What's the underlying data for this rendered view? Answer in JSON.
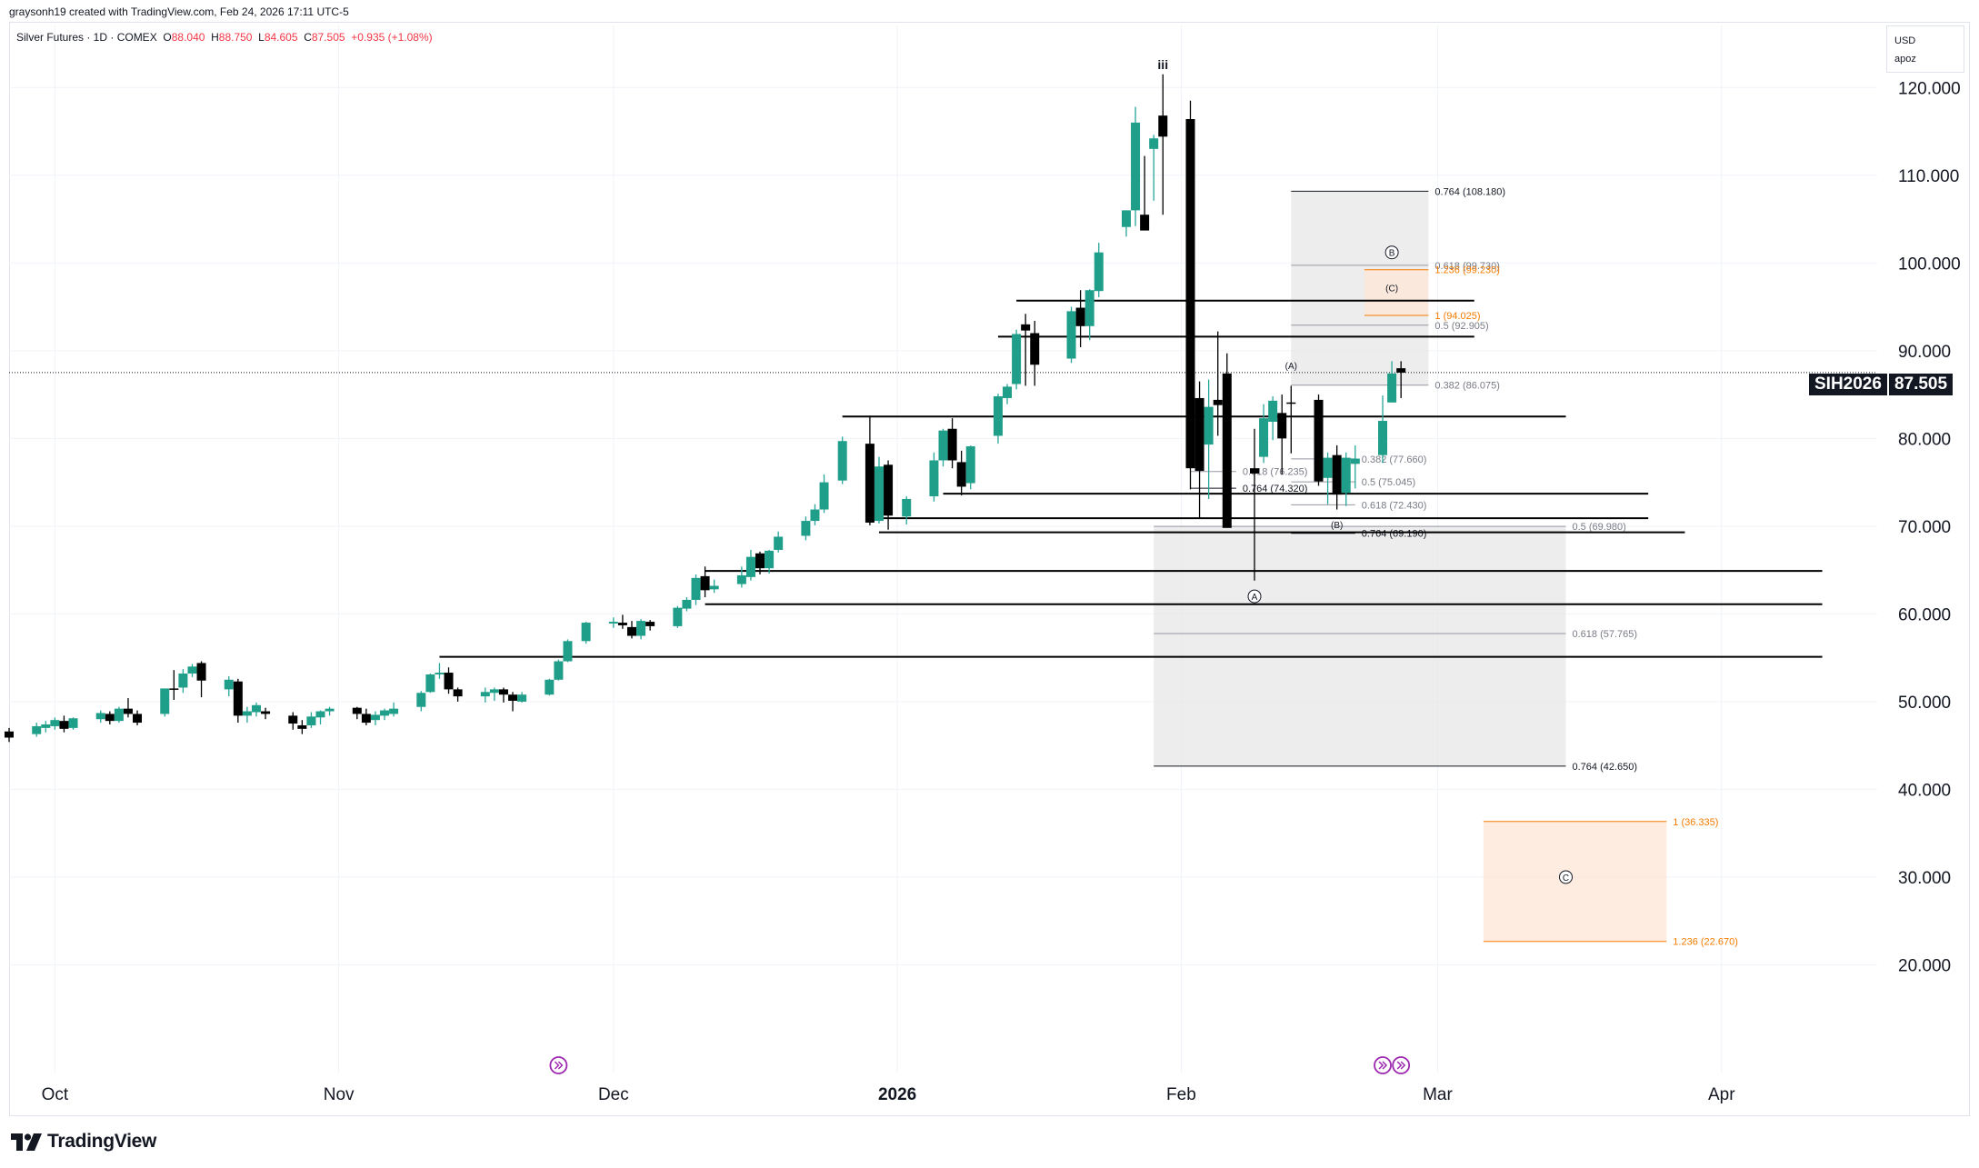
{
  "header": {
    "attribution": "graysonh19 created with TradingView.com, Feb 24, 2026 17:11 UTC-5"
  },
  "legend": {
    "symbol": "Silver Futures · 1D · COMEX",
    "o_label": "O",
    "o_value": "88.040",
    "h_label": "H",
    "h_value": "88.750",
    "l_label": "L",
    "l_value": "84.605",
    "c_label": "C",
    "c_value": "87.505",
    "change": "+0.935 (+1.08%)"
  },
  "scale_box": {
    "currency": "USD",
    "mode": "apoz"
  },
  "price_badge": {
    "ticker": "SIH2026",
    "price": "87.505"
  },
  "brand": {
    "name": "TradingView"
  },
  "colors": {
    "up": "#26a69a",
    "up_body": "#1f9e89",
    "down": "#000000",
    "orange": "#f57c00",
    "grid": "#f0f3fa",
    "zone": "#e6e6e6",
    "orange_zone": "#fde6d6"
  },
  "chart_data": {
    "type": "candlestick",
    "y_axis": {
      "ticks": [
        "20.000",
        "30.000",
        "40.000",
        "50.000",
        "60.000",
        "70.000",
        "80.000",
        "90.000",
        "100.000",
        "110.000",
        "120.000"
      ],
      "min": 10,
      "max": 125,
      "position": "right"
    },
    "x_axis": {
      "ticks": [
        {
          "label": "Oct",
          "date": "2025-10-01"
        },
        {
          "label": "Nov",
          "date": "2025-11-01"
        },
        {
          "label": "Dec",
          "date": "2025-12-01"
        },
        {
          "label": "2026",
          "date": "2026-01-01"
        },
        {
          "label": "Feb",
          "date": "2026-02-01"
        },
        {
          "label": "Mar",
          "date": "2026-03-01"
        },
        {
          "label": "Apr",
          "date": "2026-04-01"
        }
      ],
      "range": [
        "2025-09-26",
        "2026-04-18"
      ]
    },
    "candles": [
      [
        "2025-09-26",
        46.6,
        47.0,
        45.4,
        45.9
      ],
      [
        "2025-09-29",
        46.3,
        47.6,
        46.0,
        47.2
      ],
      [
        "2025-09-30",
        47.0,
        47.8,
        46.5,
        47.4
      ],
      [
        "2025-10-01",
        47.2,
        48.2,
        46.8,
        47.9
      ],
      [
        "2025-10-02",
        47.8,
        48.4,
        46.5,
        46.9
      ],
      [
        "2025-10-03",
        47.0,
        48.2,
        46.8,
        48.1
      ],
      [
        "2025-10-06",
        48.0,
        49.0,
        47.6,
        48.7
      ],
      [
        "2025-10-07",
        48.6,
        48.9,
        47.4,
        47.8
      ],
      [
        "2025-10-08",
        47.8,
        49.4,
        47.6,
        49.2
      ],
      [
        "2025-10-09",
        49.2,
        50.4,
        48.2,
        48.6
      ],
      [
        "2025-10-10",
        48.6,
        49.0,
        47.3,
        47.6
      ],
      [
        "2025-10-13",
        48.6,
        51.5,
        48.3,
        51.5
      ],
      [
        "2025-10-14",
        51.5,
        53.6,
        50.2,
        51.4
      ],
      [
        "2025-10-15",
        51.6,
        53.7,
        51.0,
        53.2
      ],
      [
        "2025-10-16",
        53.2,
        54.3,
        52.8,
        54.0
      ],
      [
        "2025-10-17",
        54.4,
        54.6,
        50.5,
        52.4
      ],
      [
        "2025-10-20",
        51.4,
        52.9,
        50.6,
        52.5
      ],
      [
        "2025-10-21",
        52.3,
        52.6,
        47.6,
        48.4
      ],
      [
        "2025-10-22",
        48.4,
        49.4,
        47.6,
        48.9
      ],
      [
        "2025-10-23",
        48.8,
        49.9,
        48.3,
        49.6
      ],
      [
        "2025-10-24",
        48.9,
        49.3,
        48.0,
        48.6
      ],
      [
        "2025-10-27",
        48.4,
        48.8,
        46.8,
        47.5
      ],
      [
        "2025-10-28",
        47.3,
        47.9,
        46.3,
        46.9
      ],
      [
        "2025-10-29",
        47.3,
        48.8,
        47.0,
        48.3
      ],
      [
        "2025-10-30",
        48.2,
        49.0,
        47.4,
        48.9
      ],
      [
        "2025-10-31",
        48.9,
        49.4,
        48.4,
        49.2
      ],
      [
        "2025-11-03",
        49.3,
        49.4,
        48.0,
        48.6
      ],
      [
        "2025-11-04",
        48.6,
        49.2,
        47.3,
        47.6
      ],
      [
        "2025-11-05",
        47.9,
        48.9,
        47.3,
        48.5
      ],
      [
        "2025-11-06",
        48.4,
        49.2,
        47.9,
        49.0
      ],
      [
        "2025-11-07",
        48.6,
        49.9,
        48.3,
        49.2
      ],
      [
        "2025-11-10",
        49.4,
        51.2,
        48.9,
        51.0
      ],
      [
        "2025-11-11",
        51.1,
        53.2,
        51.0,
        53.1
      ],
      [
        "2025-11-12",
        53.1,
        54.4,
        52.6,
        53.3
      ],
      [
        "2025-11-13",
        53.3,
        53.9,
        50.9,
        51.4
      ],
      [
        "2025-11-14",
        51.4,
        51.6,
        50.0,
        50.6
      ],
      [
        "2025-11-17",
        50.6,
        51.6,
        49.9,
        51.1
      ],
      [
        "2025-11-18",
        51.0,
        51.6,
        50.1,
        51.4
      ],
      [
        "2025-11-19",
        51.4,
        51.6,
        49.9,
        50.8
      ],
      [
        "2025-11-20",
        50.8,
        51.1,
        48.9,
        50.1
      ],
      [
        "2025-11-21",
        50.0,
        51.1,
        49.9,
        50.8
      ],
      [
        "2025-11-24",
        50.8,
        52.6,
        50.7,
        52.5
      ],
      [
        "2025-11-25",
        52.5,
        54.8,
        52.4,
        54.6
      ],
      [
        "2025-11-26",
        54.6,
        57.1,
        54.5,
        56.9
      ],
      [
        "2025-11-28",
        56.9,
        59.1,
        56.6,
        59.0
      ],
      [
        "2025-12-01",
        58.9,
        59.6,
        58.4,
        59.1
      ],
      [
        "2025-12-02",
        59.0,
        59.9,
        58.3,
        58.7
      ],
      [
        "2025-12-03",
        58.5,
        59.2,
        57.2,
        57.5
      ],
      [
        "2025-12-04",
        57.5,
        59.4,
        57.1,
        59.2
      ],
      [
        "2025-12-05",
        59.1,
        59.3,
        58.1,
        58.6
      ],
      [
        "2025-12-08",
        58.6,
        60.9,
        58.4,
        60.7
      ],
      [
        "2025-12-09",
        60.6,
        61.9,
        60.3,
        61.6
      ],
      [
        "2025-12-10",
        61.6,
        64.5,
        61.0,
        64.1
      ],
      [
        "2025-12-11",
        64.3,
        65.4,
        61.9,
        62.7
      ],
      [
        "2025-12-12",
        62.8,
        63.9,
        62.4,
        63.2
      ],
      [
        "2025-12-15",
        63.4,
        65.4,
        63.0,
        64.4
      ],
      [
        "2025-12-16",
        64.2,
        67.3,
        63.8,
        66.5
      ],
      [
        "2025-12-17",
        66.9,
        67.1,
        64.5,
        65.2
      ],
      [
        "2025-12-18",
        65.2,
        67.3,
        64.6,
        67.2
      ],
      [
        "2025-12-19",
        67.3,
        69.4,
        67.0,
        68.8
      ],
      [
        "2025-12-22",
        68.9,
        71.1,
        68.4,
        70.6
      ],
      [
        "2025-12-23",
        70.6,
        72.5,
        70.1,
        71.9
      ],
      [
        "2025-12-24",
        71.9,
        75.9,
        71.5,
        75.0
      ],
      [
        "2025-12-26",
        75.2,
        80.2,
        74.8,
        79.7
      ],
      [
        "2025-12-29",
        79.4,
        82.6,
        70.1,
        70.4
      ],
      [
        "2025-12-30",
        70.6,
        77.9,
        70.3,
        76.8
      ],
      [
        "2025-12-31",
        77.0,
        77.5,
        69.6,
        71.2
      ],
      [
        "2026-01-02",
        71.1,
        73.4,
        70.2,
        73.1
      ],
      [
        "2026-01-05",
        73.4,
        78.4,
        72.8,
        77.5
      ],
      [
        "2026-01-06",
        77.5,
        81.1,
        76.8,
        80.9
      ],
      [
        "2026-01-07",
        81.1,
        82.3,
        76.6,
        77.5
      ],
      [
        "2026-01-08",
        77.3,
        78.6,
        73.5,
        74.5
      ],
      [
        "2026-01-09",
        74.9,
        79.2,
        74.2,
        79.1
      ],
      [
        "2026-01-12",
        80.3,
        85.1,
        79.4,
        84.8
      ],
      [
        "2026-01-13",
        84.6,
        86.2,
        83.9,
        85.9
      ],
      [
        "2026-01-14",
        86.2,
        92.4,
        85.6,
        91.9
      ],
      [
        "2026-01-15",
        93.0,
        94.2,
        86.0,
        92.3
      ],
      [
        "2026-01-16",
        92.0,
        93.4,
        86.0,
        88.4
      ],
      [
        "2026-01-20",
        89.1,
        95.0,
        88.6,
        94.5
      ],
      [
        "2026-01-21",
        94.9,
        96.9,
        90.4,
        92.8
      ],
      [
        "2026-01-22",
        92.8,
        97.0,
        91.2,
        96.9
      ],
      [
        "2026-01-23",
        96.8,
        102.3,
        96.1,
        101.2
      ],
      [
        "2026-01-26",
        104.1,
        106.0,
        103.0,
        106.0
      ],
      [
        "2026-01-27",
        106.0,
        117.8,
        104.2,
        116.0
      ],
      [
        "2026-01-28",
        105.5,
        112.2,
        103.7,
        103.7
      ],
      [
        "2026-01-29",
        113.0,
        114.6,
        107.1,
        114.2
      ],
      [
        "2026-01-30",
        116.8,
        121.5,
        105.5,
        114.4
      ],
      [
        "2026-02-02",
        116.4,
        118.5,
        74.2,
        76.6
      ],
      [
        "2026-02-03",
        84.6,
        86.5,
        71.0,
        76.3
      ],
      [
        "2026-02-04",
        79.3,
        86.7,
        73.1,
        83.6
      ],
      [
        "2026-02-05",
        84.4,
        92.2,
        80.3,
        83.8
      ],
      [
        "2026-02-06",
        87.4,
        89.7,
        70.2,
        69.8
      ],
      [
        "2026-02-09",
        76.6,
        81.1,
        63.8,
        76.0
      ],
      [
        "2026-02-10",
        77.9,
        83.9,
        77.2,
        82.3
      ],
      [
        "2026-02-11",
        81.9,
        84.8,
        79.8,
        84.3
      ],
      [
        "2026-02-12",
        82.9,
        85.0,
        75.9,
        80.0
      ],
      [
        "2026-02-13",
        84.1,
        86.0,
        78.3,
        84.0
      ],
      [
        "2026-02-16",
        84.4,
        85.0,
        74.6,
        75.1
      ],
      [
        "2026-02-17",
        75.5,
        78.4,
        72.5,
        77.8
      ],
      [
        "2026-02-18",
        78.1,
        79.2,
        71.9,
        73.6
      ],
      [
        "2026-02-19",
        73.8,
        78.4,
        72.3,
        77.8
      ],
      [
        "2026-02-20",
        77.1,
        79.2,
        74.3,
        77.7
      ],
      [
        "2026-02-23",
        78.1,
        84.9,
        77.2,
        82.0
      ],
      [
        "2026-02-24",
        84.1,
        88.8,
        84.1,
        87.4
      ],
      [
        "2026-02-25",
        88.0,
        88.8,
        84.6,
        87.5
      ]
    ],
    "horizontal_lines": [
      {
        "value": 95.7,
        "start": "2026-01-14",
        "end": "2026-03-05"
      },
      {
        "value": 91.6,
        "start": "2026-01-12",
        "end": "2026-03-05"
      },
      {
        "value": 82.5,
        "start": "2025-12-26",
        "end": "2026-03-15"
      },
      {
        "value": 73.7,
        "start": "2026-01-06",
        "end": "2026-03-24"
      },
      {
        "value": 70.9,
        "start": "2025-12-30",
        "end": "2026-03-24"
      },
      {
        "value": 69.3,
        "start": "2025-12-30",
        "end": "2026-03-28"
      },
      {
        "value": 64.9,
        "start": "2025-12-11",
        "end": "2026-04-12"
      },
      {
        "value": 61.1,
        "start": "2025-12-11",
        "end": "2026-04-12"
      },
      {
        "value": 55.1,
        "start": "2025-11-12",
        "end": "2026-04-12"
      }
    ],
    "fib_zones": [
      {
        "from": "2026-01-29",
        "to": "2026-03-15",
        "top": 70.0,
        "bottom": 42.65,
        "color": "gray"
      },
      {
        "from": "2026-02-13",
        "to": "2026-02-28",
        "top": 108.18,
        "bottom": 86.075,
        "color": "gray"
      },
      {
        "from": "2026-02-21",
        "to": "2026-02-28",
        "top": 99.23,
        "bottom": 94.025,
        "color": "orange"
      },
      {
        "from": "2026-03-06",
        "to": "2026-03-26",
        "top": 36.335,
        "bottom": 22.67,
        "color": "orange"
      }
    ],
    "fib_levels": [
      {
        "label": "0.764 (108.180)",
        "value": 108.18,
        "start": "2026-02-13",
        "end": "2026-02-28",
        "color": "dark"
      },
      {
        "label": "0.618 (99.730)",
        "value": 99.73,
        "start": "2026-02-13",
        "end": "2026-02-28",
        "color": "gray"
      },
      {
        "label": "1.236 (99.230)",
        "value": 99.23,
        "start": "2026-02-21",
        "end": "2026-02-28",
        "color": "orange"
      },
      {
        "label": "1 (94.025)",
        "value": 94.025,
        "start": "2026-02-21",
        "end": "2026-02-28",
        "color": "orange"
      },
      {
        "label": "0.5 (92.905)",
        "value": 92.905,
        "start": "2026-02-13",
        "end": "2026-02-28",
        "color": "gray"
      },
      {
        "label": "0.382 (86.075)",
        "value": 86.075,
        "start": "2026-02-13",
        "end": "2026-02-28",
        "color": "gray"
      },
      {
        "label": "0.382 (77.660)",
        "value": 77.66,
        "start": "2026-02-13",
        "end": "2026-02-20",
        "color": "gray"
      },
      {
        "label": "0.618 (76.235)",
        "value": 76.235,
        "start": "2026-02-02",
        "end": "2026-02-07",
        "color": "gray"
      },
      {
        "label": "0.5 (75.045)",
        "value": 75.045,
        "start": "2026-02-13",
        "end": "2026-02-20",
        "color": "gray"
      },
      {
        "label": "0.764 (74.320)",
        "value": 74.32,
        "start": "2026-02-02",
        "end": "2026-02-07",
        "color": "dark"
      },
      {
        "label": "0.618 (72.430)",
        "value": 72.43,
        "start": "2026-02-13",
        "end": "2026-02-20",
        "color": "gray"
      },
      {
        "label": "0.5 (69.980)",
        "value": 69.98,
        "start": "2026-01-29",
        "end": "2026-03-15",
        "color": "gray"
      },
      {
        "label": "0.764 (69.190)",
        "value": 69.19,
        "start": "2026-02-13",
        "end": "2026-02-20",
        "color": "dark"
      },
      {
        "label": "0.618 (57.765)",
        "value": 57.765,
        "start": "2026-01-29",
        "end": "2026-03-15",
        "color": "gray"
      },
      {
        "label": "0.764 (42.650)",
        "value": 42.65,
        "start": "2026-01-29",
        "end": "2026-03-15",
        "color": "dark"
      },
      {
        "label": "1 (36.335)",
        "value": 36.335,
        "start": "2026-03-06",
        "end": "2026-03-26",
        "color": "orange"
      },
      {
        "label": "1.236 (22.670)",
        "value": 22.67,
        "start": "2026-03-06",
        "end": "2026-03-26",
        "color": "orange"
      }
    ],
    "wave_labels": [
      {
        "text": "iii",
        "date": "2026-01-30",
        "value": 122.5,
        "style": "plain"
      },
      {
        "text": "B",
        "date": "2026-02-24",
        "value": 101.2,
        "style": "circle"
      },
      {
        "text": "(C)",
        "date": "2026-02-24",
        "value": 97.2,
        "style": "plain"
      },
      {
        "text": "(A)",
        "date": "2026-02-13",
        "value": 88.3,
        "style": "plain"
      },
      {
        "text": "(B)",
        "date": "2026-02-18",
        "value": 70.2,
        "style": "plain"
      },
      {
        "text": "A",
        "date": "2026-02-09",
        "value": 62.0,
        "style": "circle"
      },
      {
        "text": "C",
        "date": "2026-03-15",
        "value": 30.0,
        "style": "circle"
      }
    ],
    "current_price": 87.505
  }
}
